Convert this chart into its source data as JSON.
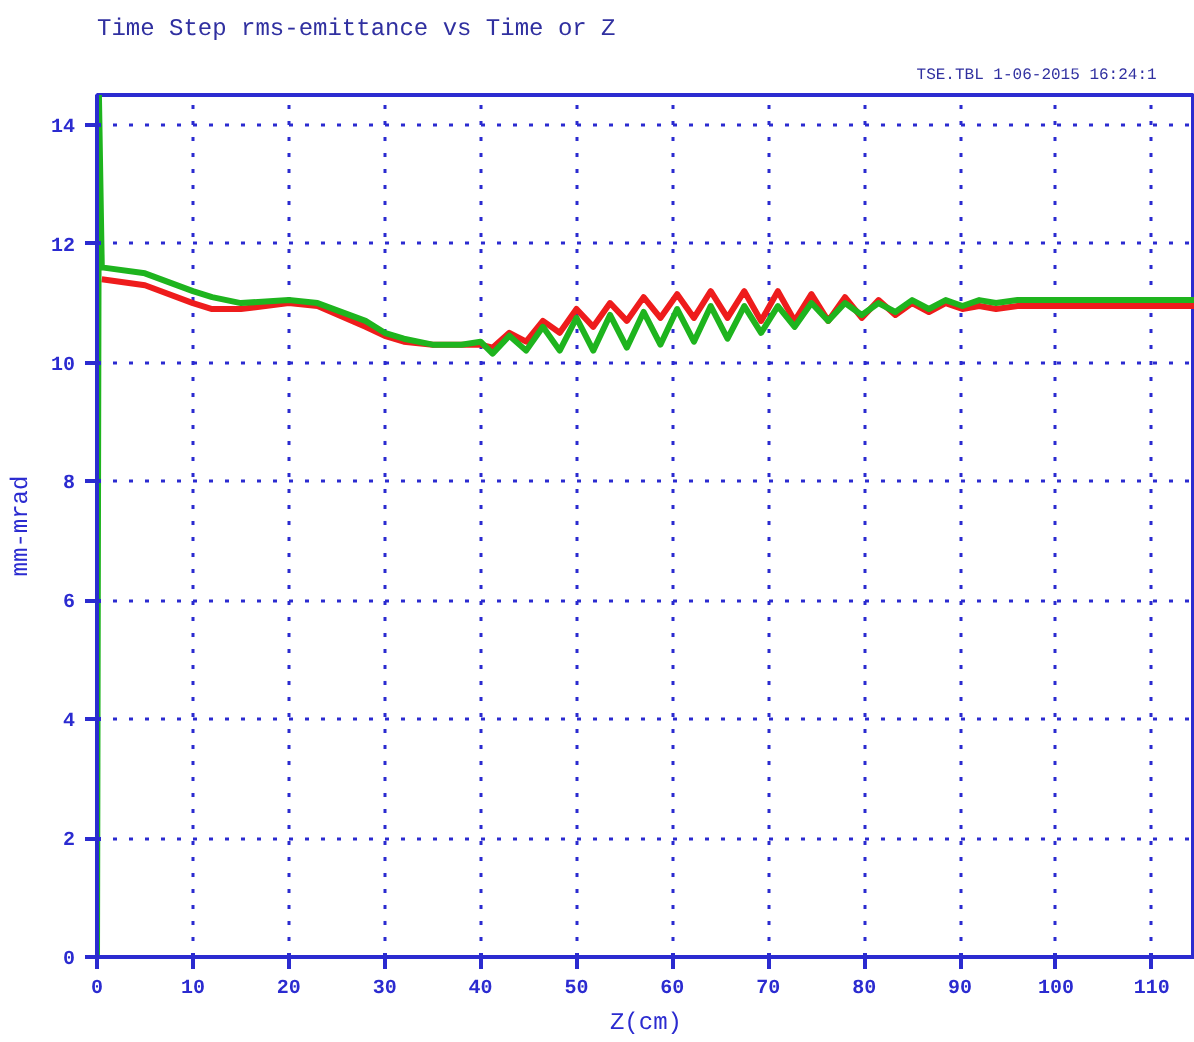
{
  "chart_data": {
    "type": "line",
    "title": "Time Step rms-emittance vs Time or Z",
    "xlabel": "Z(cm)",
    "ylabel": "mm-mrad",
    "annotations": [
      "TSE.TBL   1-06-2015   16:24:1"
    ],
    "xlim": [
      0,
      114.5
    ],
    "ylim": [
      0,
      14.5
    ],
    "xticks": [
      0,
      10,
      20,
      30,
      40,
      50,
      60,
      70,
      80,
      90,
      100,
      110
    ],
    "yticks": [
      0,
      2,
      4,
      6,
      8,
      10,
      12,
      14
    ],
    "grid": true,
    "line_style": "solid",
    "marker": "none",
    "series": [
      {
        "color": "#ee1c1c",
        "x": [
          0.5,
          5,
          10,
          12,
          15,
          20,
          23,
          28,
          30,
          32,
          35,
          38,
          40,
          41.25,
          43,
          44.75,
          46.5,
          48.25,
          50,
          51.75,
          53.5,
          55.25,
          57,
          58.75,
          60.5,
          62.25,
          64,
          65.75,
          67.5,
          69.25,
          71,
          72.75,
          74.5,
          76.25,
          78,
          79.75,
          81.5,
          83.25,
          85,
          86.75,
          88.5,
          90.25,
          92,
          93.75,
          96,
          114.5
        ],
        "values": [
          11.4,
          11.3,
          11.0,
          10.9,
          10.9,
          11.0,
          10.95,
          10.6,
          10.45,
          10.35,
          10.3,
          10.3,
          10.3,
          10.25,
          10.5,
          10.35,
          10.7,
          10.5,
          10.9,
          10.6,
          11.0,
          10.7,
          11.1,
          10.75,
          11.15,
          10.75,
          11.2,
          10.75,
          11.2,
          10.7,
          11.2,
          10.7,
          11.15,
          10.7,
          11.1,
          10.75,
          11.05,
          10.8,
          11.0,
          10.85,
          11.0,
          10.9,
          10.95,
          10.9,
          10.95,
          10.95
        ]
      },
      {
        "color": "#1eb41e",
        "x": [
          0,
          0.2,
          0.5,
          5,
          10,
          12,
          15,
          20,
          23,
          28,
          30,
          32,
          35,
          38,
          40,
          41.25,
          43,
          44.75,
          46.5,
          48.25,
          50,
          51.75,
          53.5,
          55.25,
          57,
          58.75,
          60.5,
          62.25,
          64,
          65.75,
          67.5,
          69.25,
          71,
          72.75,
          74.5,
          76.25,
          78,
          79.75,
          81.5,
          83.25,
          85,
          86.75,
          88.5,
          90.25,
          92,
          93.75,
          96,
          114.5
        ],
        "values": [
          0,
          14.5,
          11.6,
          11.5,
          11.2,
          11.1,
          11.0,
          11.05,
          11.0,
          10.7,
          10.5,
          10.4,
          10.3,
          10.3,
          10.35,
          10.15,
          10.45,
          10.2,
          10.6,
          10.2,
          10.75,
          10.2,
          10.8,
          10.25,
          10.85,
          10.3,
          10.9,
          10.35,
          10.95,
          10.4,
          10.95,
          10.5,
          10.95,
          10.6,
          11.0,
          10.7,
          11.0,
          10.8,
          11.0,
          10.85,
          11.05,
          10.9,
          11.05,
          10.95,
          11.05,
          11.0,
          11.05,
          11.05
        ]
      }
    ]
  }
}
